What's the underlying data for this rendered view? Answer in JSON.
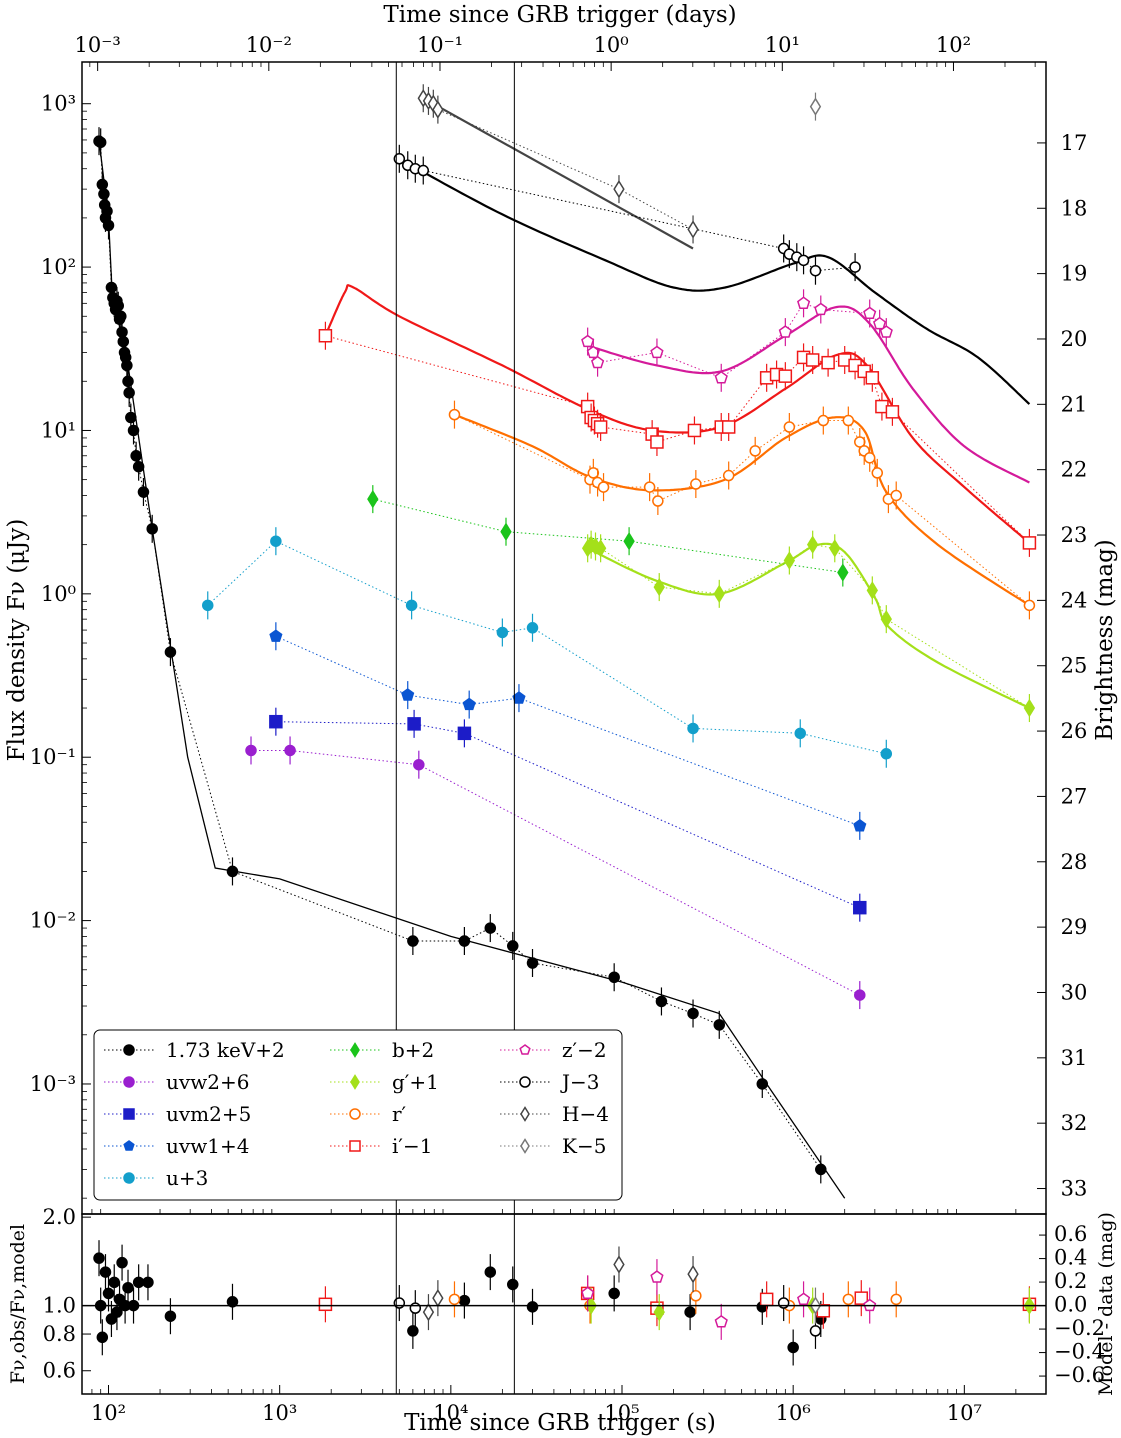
{
  "chart_data": {
    "type": "scatter",
    "top_xlabel": "Time since GRB trigger (days)",
    "bottom_xlabel": "Time since GRB trigger (s)",
    "main_ylabel": "Flux density Fν (μJy)",
    "right_ylabel_main": "Brightness (mag)",
    "resid_ylabel": "Fν,obs/Fν,model",
    "right_ylabel_resid": "Model - data (mag)",
    "xlim_s": [
      70,
      30000000
    ],
    "main_ylim": [
      0.00016,
      1800
    ],
    "resid_ylim": [
      0.5,
      2.05
    ],
    "top_ticks": [
      "10⁻³",
      "10⁻²",
      "10⁻¹",
      "10⁰",
      "10¹",
      "10²"
    ],
    "bottom_ticks": [
      "10²",
      "10³",
      "10⁴",
      "10⁵",
      "10⁶",
      "10⁷"
    ],
    "main_left_ticks": [
      "10³",
      "10²",
      "10¹",
      "10⁰",
      "10⁻¹",
      "10⁻²",
      "10⁻³"
    ],
    "main_right_ticks": [
      "17",
      "18",
      "19",
      "20",
      "21",
      "22",
      "23",
      "24",
      "25",
      "26",
      "27",
      "28",
      "29",
      "30",
      "31",
      "32",
      "33"
    ],
    "resid_left_ticks": [
      "2.0",
      "1.0",
      "0.8",
      "0.6"
    ],
    "resid_right_ticks": [
      "0.6",
      "0.4",
      "0.2",
      "0.0",
      "−0.2",
      "−0.4",
      "−0.6"
    ],
    "vlines_s": [
      4800,
      23500
    ],
    "legend": [
      "1.73 keV+2",
      "uvw2+6",
      "uvm2+5",
      "uvw1+4",
      "u+3",
      "b+2",
      "g′+1",
      "r′",
      "i′−1",
      "z′−2",
      "J−3",
      "H−4",
      "K−5"
    ],
    "colors": {
      "xray": "#000000",
      "uvw2": "#9a1fcf",
      "uvm2": "#1c1cc8",
      "uvw1": "#0a55d2",
      "u": "#139fcb",
      "b": "#1bc41b",
      "g": "#a4e01a",
      "r": "#ff6f00",
      "i": "#f01818",
      "z": "#d41a9a",
      "J": "#000000",
      "H": "#444444",
      "K": "#777777"
    },
    "series": [
      {
        "name": "xray",
        "marker": "circle",
        "filled": true,
        "points": [
          [
            88,
            590
          ],
          [
            90,
            580
          ],
          [
            92,
            320
          ],
          [
            94,
            280
          ],
          [
            95,
            240
          ],
          [
            96,
            200
          ],
          [
            98,
            220
          ],
          [
            100,
            180
          ],
          [
            104,
            75
          ],
          [
            106,
            65
          ],
          [
            108,
            60
          ],
          [
            110,
            55
          ],
          [
            112,
            62
          ],
          [
            114,
            58
          ],
          [
            116,
            48
          ],
          [
            118,
            50
          ],
          [
            120,
            40
          ],
          [
            122,
            35
          ],
          [
            124,
            30
          ],
          [
            126,
            28
          ],
          [
            128,
            25
          ],
          [
            130,
            20
          ],
          [
            132,
            17
          ],
          [
            135,
            12
          ],
          [
            140,
            10
          ],
          [
            145,
            7
          ],
          [
            150,
            6
          ],
          [
            160,
            4.2
          ],
          [
            180,
            2.5
          ],
          [
            230,
            0.44
          ],
          [
            530,
            0.02
          ],
          [
            6000,
            0.0075
          ],
          [
            12000,
            0.0075
          ],
          [
            17000,
            0.009
          ],
          [
            23000,
            0.007
          ],
          [
            30000,
            0.0055
          ],
          [
            90000,
            0.0045
          ],
          [
            170000,
            0.0032
          ],
          [
            260000,
            0.0027
          ],
          [
            370000,
            0.0023
          ],
          [
            660000,
            0.001
          ],
          [
            1450000,
            0.0003
          ]
        ]
      },
      {
        "name": "uvw2",
        "marker": "circle",
        "filled": true,
        "points": [
          [
            680,
            0.11
          ],
          [
            1150,
            0.11
          ],
          [
            6500,
            0.09
          ],
          [
            2450000,
            0.0035
          ]
        ]
      },
      {
        "name": "uvm2",
        "marker": "square",
        "filled": true,
        "points": [
          [
            950,
            0.165
          ],
          [
            6100,
            0.16
          ],
          [
            12000,
            0.14
          ],
          [
            2450000,
            0.012
          ]
        ]
      },
      {
        "name": "uvw1",
        "marker": "pentagon",
        "filled": true,
        "points": [
          [
            950,
            0.55
          ],
          [
            5600,
            0.24
          ],
          [
            12800,
            0.21
          ],
          [
            25000,
            0.23
          ],
          [
            2450000,
            0.038
          ]
        ]
      },
      {
        "name": "u",
        "marker": "circle",
        "filled": true,
        "points": [
          [
            380,
            0.85
          ],
          [
            950,
            2.1
          ],
          [
            5900,
            0.85
          ],
          [
            20000,
            0.58
          ],
          [
            30000,
            0.62
          ],
          [
            260000,
            0.15
          ],
          [
            1100000,
            0.14
          ],
          [
            3500000,
            0.105
          ]
        ]
      },
      {
        "name": "b",
        "marker": "diamond",
        "filled": true,
        "points": [
          [
            3500,
            3.8
          ],
          [
            21000,
            2.4
          ],
          [
            110000,
            2.1
          ],
          [
            1950000,
            1.35
          ]
        ]
      },
      {
        "name": "g",
        "marker": "diamond",
        "filled": true,
        "points": [
          [
            63000,
            1.9
          ],
          [
            66000,
            2.0
          ],
          [
            70000,
            1.95
          ],
          [
            75000,
            1.9
          ],
          [
            165000,
            1.1
          ],
          [
            370000,
            1.0
          ],
          [
            950000,
            1.6
          ],
          [
            1300000,
            2.0
          ],
          [
            1750000,
            1.9
          ],
          [
            2900000,
            1.05
          ],
          [
            3500000,
            0.7
          ],
          [
            24000000,
            0.2
          ]
        ]
      },
      {
        "name": "r",
        "marker": "circle",
        "filled": false,
        "points": [
          [
            10500,
            12.5
          ],
          [
            65000,
            5.0
          ],
          [
            68000,
            5.5
          ],
          [
            72000,
            4.8
          ],
          [
            78000,
            4.5
          ],
          [
            145000,
            4.5
          ],
          [
            162000,
            3.7
          ],
          [
            270000,
            4.7
          ],
          [
            420000,
            5.3
          ],
          [
            600000,
            7.5
          ],
          [
            950000,
            10.5
          ],
          [
            1500000,
            11.5
          ],
          [
            2100000,
            11.5
          ],
          [
            2450000,
            8.5
          ],
          [
            2600000,
            7.5
          ],
          [
            2800000,
            6.8
          ],
          [
            3100000,
            5.5
          ],
          [
            3600000,
            3.8
          ],
          [
            4000000,
            4.0
          ],
          [
            24000000,
            0.85
          ]
        ]
      },
      {
        "name": "i",
        "marker": "square",
        "filled": false,
        "points": [
          [
            1850,
            38
          ],
          [
            63000,
            14
          ],
          [
            66000,
            12
          ],
          [
            69000,
            11.5
          ],
          [
            72000,
            11
          ],
          [
            75000,
            10.5
          ],
          [
            150000,
            9.5
          ],
          [
            160000,
            8.5
          ],
          [
            265000,
            10
          ],
          [
            380000,
            10.5
          ],
          [
            420000,
            10.5
          ],
          [
            700000,
            21
          ],
          [
            800000,
            22
          ],
          [
            900000,
            21.5
          ],
          [
            1150000,
            28
          ],
          [
            1300000,
            27
          ],
          [
            1600000,
            26
          ],
          [
            2000000,
            27
          ],
          [
            2300000,
            25
          ],
          [
            2600000,
            23
          ],
          [
            2900000,
            21
          ],
          [
            3300000,
            14
          ],
          [
            3800000,
            13
          ],
          [
            24000000,
            2.05
          ]
        ]
      },
      {
        "name": "z",
        "marker": "pentagon",
        "filled": false,
        "points": [
          [
            63000,
            35
          ],
          [
            68000,
            30
          ],
          [
            72000,
            26
          ],
          [
            160000,
            30
          ],
          [
            380000,
            21
          ],
          [
            900000,
            40
          ],
          [
            1150000,
            60
          ],
          [
            1450000,
            55
          ],
          [
            2800000,
            52
          ],
          [
            3200000,
            45
          ],
          [
            3500000,
            40
          ]
        ]
      },
      {
        "name": "J",
        "marker": "circle",
        "filled": false,
        "points": [
          [
            5000,
            460
          ],
          [
            5600,
            420
          ],
          [
            6200,
            400
          ],
          [
            6900,
            390
          ],
          [
            880000,
            130
          ],
          [
            950000,
            120
          ],
          [
            1050000,
            115
          ],
          [
            1150000,
            110
          ],
          [
            1350000,
            95
          ],
          [
            2300000,
            100
          ]
        ]
      },
      {
        "name": "H",
        "marker": "diamond",
        "filled": false,
        "points": [
          [
            6900,
            1080
          ],
          [
            7400,
            1040
          ],
          [
            7900,
            1000
          ],
          [
            8400,
            920
          ],
          [
            96000,
            300
          ],
          [
            260000,
            170
          ]
        ]
      },
      {
        "name": "K",
        "marker": "diamond",
        "filled": false,
        "points": [
          [
            1350000,
            960
          ]
        ]
      }
    ],
    "residuals": [
      {
        "name": "xray",
        "points": [
          [
            88,
            1.45
          ],
          [
            90,
            1.0
          ],
          [
            92,
            0.78
          ],
          [
            96,
            1.3
          ],
          [
            100,
            1.1
          ],
          [
            104,
            0.9
          ],
          [
            108,
            1.2
          ],
          [
            112,
            0.95
          ],
          [
            116,
            1.05
          ],
          [
            120,
            1.4
          ],
          [
            125,
            1.0
          ],
          [
            130,
            1.15
          ],
          [
            140,
            1.0
          ],
          [
            150,
            1.2
          ],
          [
            170,
            1.2
          ],
          [
            230,
            0.92
          ],
          [
            530,
            1.03
          ],
          [
            6000,
            0.82
          ],
          [
            12000,
            1.04
          ],
          [
            17000,
            1.3
          ],
          [
            23000,
            1.18
          ],
          [
            30000,
            0.99
          ],
          [
            90000,
            1.1
          ],
          [
            250000,
            0.95
          ],
          [
            660000,
            0.99
          ],
          [
            1000000,
            0.72
          ],
          [
            1450000,
            0.9
          ]
        ]
      },
      {
        "name": "i",
        "points": [
          [
            1850,
            1.01
          ],
          [
            63000,
            1.1
          ],
          [
            160000,
            0.98
          ],
          [
            700000,
            1.05
          ],
          [
            1500000,
            0.96
          ],
          [
            2500000,
            1.06
          ],
          [
            24000000,
            1.01
          ]
        ]
      },
      {
        "name": "r",
        "points": [
          [
            10500,
            1.05
          ],
          [
            65000,
            1.0
          ],
          [
            270000,
            1.08
          ],
          [
            950000,
            1.0
          ],
          [
            2100000,
            1.05
          ],
          [
            4000000,
            1.05
          ]
        ]
      },
      {
        "name": "g",
        "points": [
          [
            66000,
            1.0
          ],
          [
            165000,
            0.95
          ],
          [
            1300000,
            1.0
          ],
          [
            24000000,
            1.0
          ]
        ]
      },
      {
        "name": "z",
        "points": [
          [
            63000,
            1.1
          ],
          [
            160000,
            1.25
          ],
          [
            380000,
            0.88
          ],
          [
            1150000,
            1.05
          ],
          [
            2800000,
            1.0
          ]
        ]
      },
      {
        "name": "J",
        "points": [
          [
            5000,
            1.02
          ],
          [
            6200,
            0.98
          ],
          [
            880000,
            1.02
          ],
          [
            1350000,
            0.82
          ]
        ]
      },
      {
        "name": "H",
        "points": [
          [
            7400,
            0.95
          ],
          [
            8400,
            1.06
          ],
          [
            96000,
            1.38
          ],
          [
            260000,
            1.28
          ]
        ]
      },
      {
        "name": "K",
        "points": [
          [
            1350000,
            1.0
          ]
        ]
      }
    ]
  }
}
